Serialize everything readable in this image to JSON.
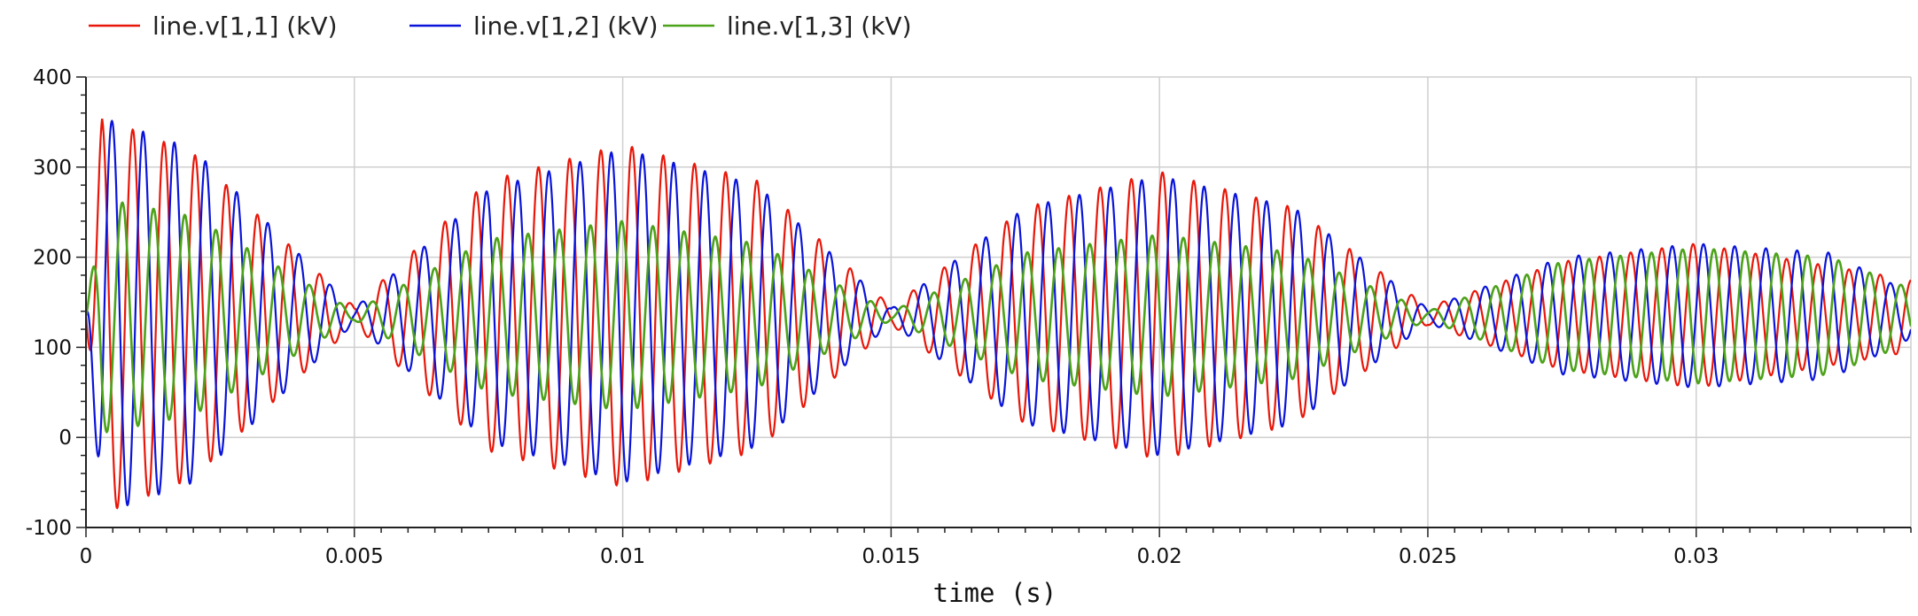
{
  "chart_data": {
    "type": "line",
    "title": "",
    "xlabel": "time (s)",
    "ylabel": "",
    "xlim": [
      0,
      0.034
    ],
    "ylim": [
      -100,
      400
    ],
    "x_ticks": [
      0,
      0.005,
      0.01,
      0.015,
      0.02,
      0.025,
      0.03
    ],
    "x_tick_labels": [
      "0",
      "0.005",
      "0.01",
      "0.015",
      "0.02",
      "0.025",
      "0.03"
    ],
    "y_ticks": [
      -100,
      0,
      100,
      200,
      300,
      400
    ],
    "y_tick_labels": [
      "-100",
      "0",
      "100",
      "200",
      "300",
      "400"
    ],
    "grid": true,
    "legend_position": "top-left",
    "oscillation_frequency_hz": 1720,
    "series": [
      {
        "name": "line.v[1,1] (kV)",
        "color": "#e8170a",
        "baseline": 135,
        "envelope_t": [
          0,
          0.0003,
          0.002,
          0.005,
          0.0075,
          0.01,
          0.0125,
          0.015,
          0.0175,
          0.02,
          0.0225,
          0.025,
          0.0275,
          0.03,
          0.034
        ],
        "envelope_amp": [
          0,
          220,
          180,
          10,
          150,
          190,
          150,
          10,
          120,
          160,
          120,
          10,
          60,
          80,
          40
        ]
      },
      {
        "name": "line.v[1,2] (kV)",
        "color": "#0a14d8",
        "baseline": 135,
        "envelope_t": [
          0,
          0.0003,
          0.002,
          0.005,
          0.0075,
          0.01,
          0.0125,
          0.015,
          0.0175,
          0.02,
          0.0225,
          0.025,
          0.0275,
          0.03,
          0.0325,
          0.034
        ],
        "envelope_amp": [
          0,
          220,
          185,
          8,
          140,
          185,
          145,
          8,
          120,
          155,
          120,
          8,
          65,
          80,
          70,
          25
        ]
      },
      {
        "name": "line.v[1,3] (kV)",
        "color": "#4ca21a",
        "baseline": 135,
        "envelope_t": [
          0,
          0.0003,
          0.002,
          0.005,
          0.0075,
          0.01,
          0.0125,
          0.015,
          0.0175,
          0.02,
          0.0225,
          0.025,
          0.0275,
          0.03,
          0.0325,
          0.034
        ],
        "envelope_amp": [
          0,
          130,
          110,
          5,
          85,
          105,
          80,
          5,
          70,
          90,
          70,
          5,
          60,
          75,
          65,
          30
        ]
      }
    ]
  }
}
